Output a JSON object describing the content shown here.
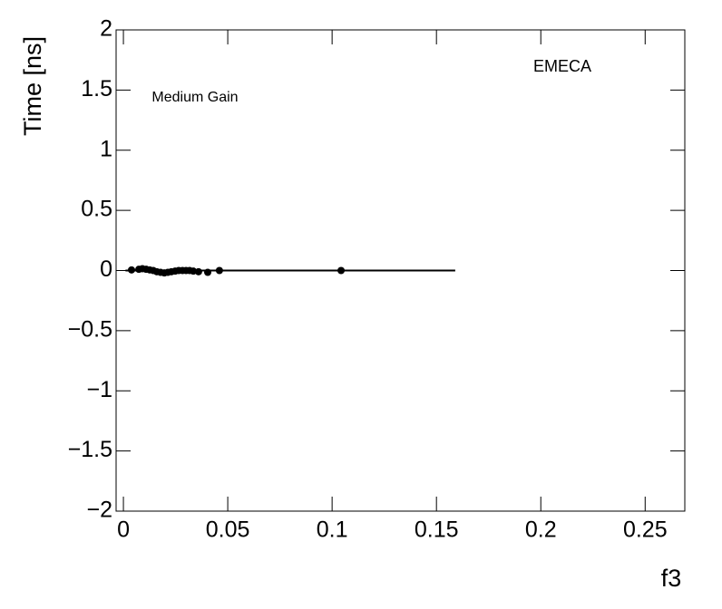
{
  "chart_data": {
    "type": "scatter",
    "x_label": "f3",
    "y_label": "Time [ns]",
    "annotations": [
      "EMECA",
      "Medium Gain"
    ],
    "x": [
      0.0039,
      0.0074,
      0.0091,
      0.0109,
      0.0126,
      0.0143,
      0.016,
      0.0178,
      0.0196,
      0.0213,
      0.023,
      0.0248,
      0.0265,
      0.0283,
      0.03,
      0.0317,
      0.0335,
      0.036,
      0.0404,
      0.046,
      0.1043
    ],
    "values": [
      0.005,
      0.01,
      0.015,
      0.01,
      0.005,
      0,
      -0.01,
      -0.015,
      -0.02,
      -0.015,
      -0.01,
      -0.005,
      0,
      0,
      0,
      0,
      -0.005,
      -0.01,
      -0.015,
      0,
      0
    ],
    "color": "#000000",
    "fit": {
      "x": [
        0.001,
        0.159
      ],
      "values": [
        0,
        0
      ],
      "color": "#000000"
    },
    "xlim": [
      -0.0035,
      0.269
    ],
    "ylim": [
      -2,
      2
    ],
    "xticks": [
      0,
      0.05,
      0.1,
      0.15,
      0.2,
      0.25
    ],
    "yticks": [
      {
        "value": -2,
        "label": "−2"
      },
      {
        "value": -1.5,
        "label": "−1.5"
      },
      {
        "value": -1,
        "label": "−1"
      },
      {
        "value": -0.5,
        "label": "−0.5"
      },
      0,
      0.5,
      1,
      1.5,
      2
    ]
  }
}
